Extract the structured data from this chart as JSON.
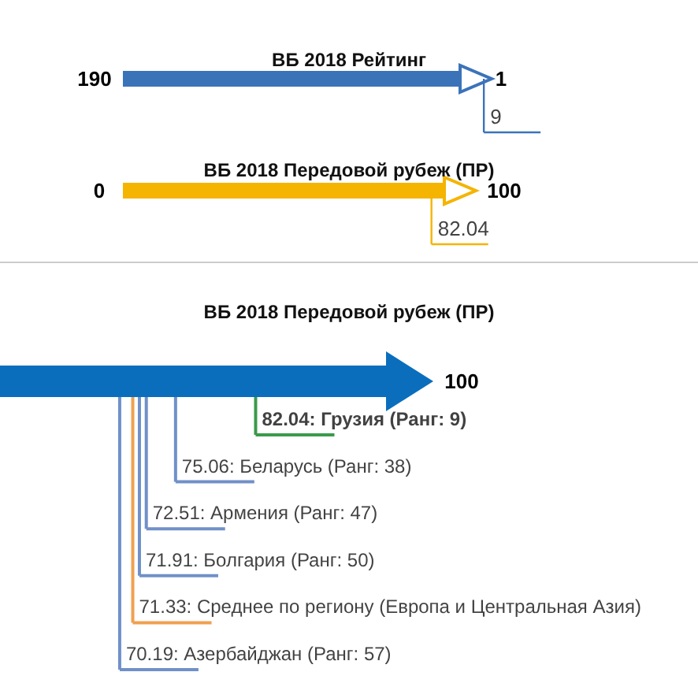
{
  "chart_data": [
    {
      "type": "other",
      "title": "ВБ 2018 Рейтинг",
      "annotations": [
        "190",
        "1"
      ],
      "values": [
        9
      ],
      "color": "#3b73b9",
      "data_labels": true
    },
    {
      "type": "other",
      "title": "ВБ 2018 Передовой рубеж (ПР)",
      "annotations": [
        "0",
        "100"
      ],
      "values": [
        82.04
      ],
      "color": "#f5b400",
      "data_labels": true
    },
    {
      "type": "other",
      "title": "ВБ 2018 Передовой рубеж (ПР)",
      "annotations": [
        "100"
      ],
      "color": "#0a6ebd",
      "categories": [
        "Грузия (Ранг: 9)",
        "Беларусь (Ранг: 38)",
        "Армения (Ранг: 47)",
        "Болгария (Ранг: 50)",
        "Среднее по региону (Европа и Центральная Азия)",
        "Азербайджан (Ранг: 57)"
      ],
      "values": [
        82.04,
        75.06,
        72.51,
        71.91,
        71.33,
        70.19
      ],
      "value_labels": [
        "82.04:",
        "75.06:",
        "72.51:",
        "71.91:",
        "71.33:",
        "70.19:"
      ],
      "colors": [
        "#3a9a4a",
        "#7090c8",
        "#7090c8",
        "#7090c8",
        "#f0a050",
        "#7090c8"
      ]
    }
  ]
}
